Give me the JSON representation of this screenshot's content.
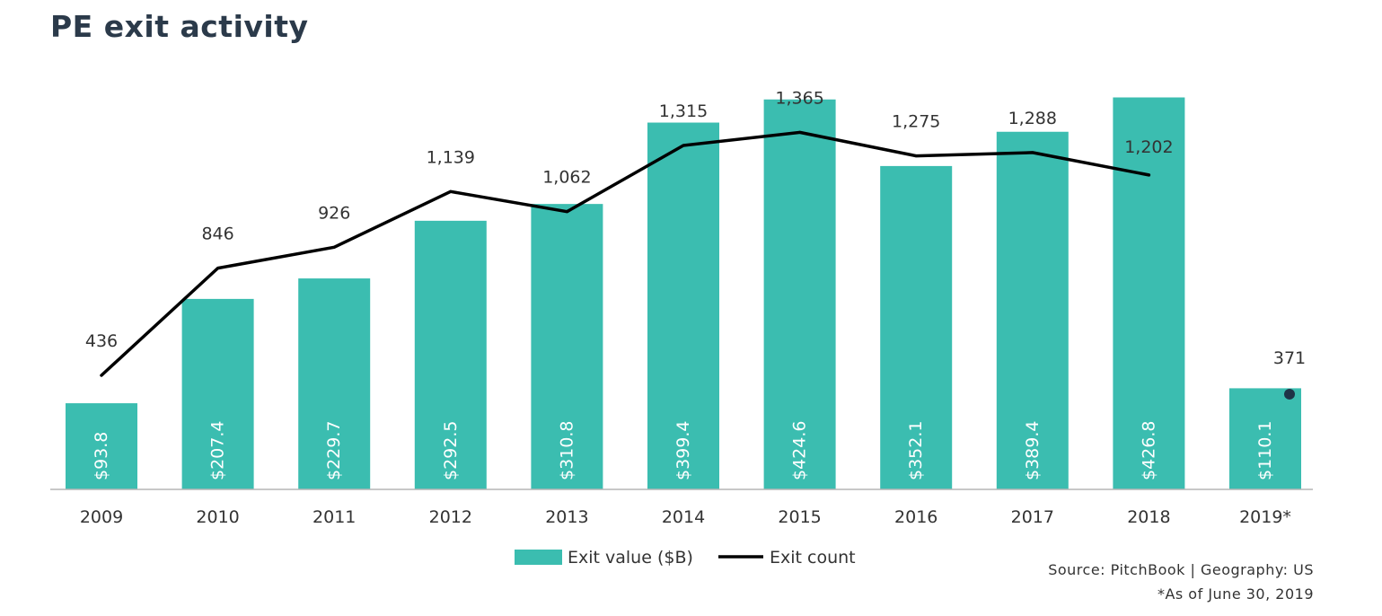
{
  "title": "PE exit activity",
  "chart_data": {
    "type": "bar",
    "title": "PE exit activity",
    "categories": [
      "2009",
      "2010",
      "2011",
      "2012",
      "2013",
      "2014",
      "2015",
      "2016",
      "2017",
      "2018",
      "2019*"
    ],
    "series": [
      {
        "name": "Exit value ($B)",
        "type": "bar",
        "axis": "left",
        "values": [
          93.8,
          207.4,
          229.7,
          292.5,
          310.8,
          399.4,
          424.6,
          352.1,
          389.4,
          426.8,
          110.1
        ],
        "labels": [
          "$93.8",
          "$207.4",
          "$229.7",
          "$292.5",
          "$310.8",
          "$399.4",
          "$424.6",
          "$352.1",
          "$389.4",
          "$426.8",
          "$110.1"
        ],
        "color": "#3bbdb0"
      },
      {
        "name": "Exit count",
        "type": "line",
        "axis": "right",
        "values": [
          436,
          846,
          926,
          1139,
          1062,
          1315,
          1365,
          1275,
          1288,
          1202,
          371
        ],
        "labels": [
          "436",
          "846",
          "926",
          "1,139",
          "1,062",
          "1,315",
          "1,365",
          "1,275",
          "1,288",
          "1,202",
          "371"
        ],
        "color": "#000000",
        "line_ends_at": "2018",
        "marker_only": [
          "2019*"
        ]
      }
    ],
    "ylim_left": [
      0,
      440
    ],
    "ylim_right": [
      0,
      1545
    ],
    "grid": false,
    "legend": "bottom-center"
  },
  "legend": {
    "items": [
      {
        "label": "Exit value ($B)",
        "color": "#3bbdb0"
      },
      {
        "label": "Exit count",
        "color": "#000000"
      }
    ]
  },
  "footer": {
    "source": "Source: PitchBook | Geography: US",
    "note": "*As of June 30, 2019"
  }
}
